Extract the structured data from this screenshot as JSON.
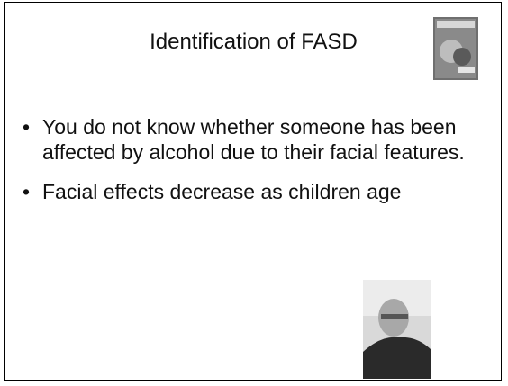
{
  "slide": {
    "title": "Identification of FASD",
    "bullets": [
      "You do not know whether someone has been affected by alcohol due to their facial features.",
      "Facial effects decrease as children age"
    ]
  }
}
